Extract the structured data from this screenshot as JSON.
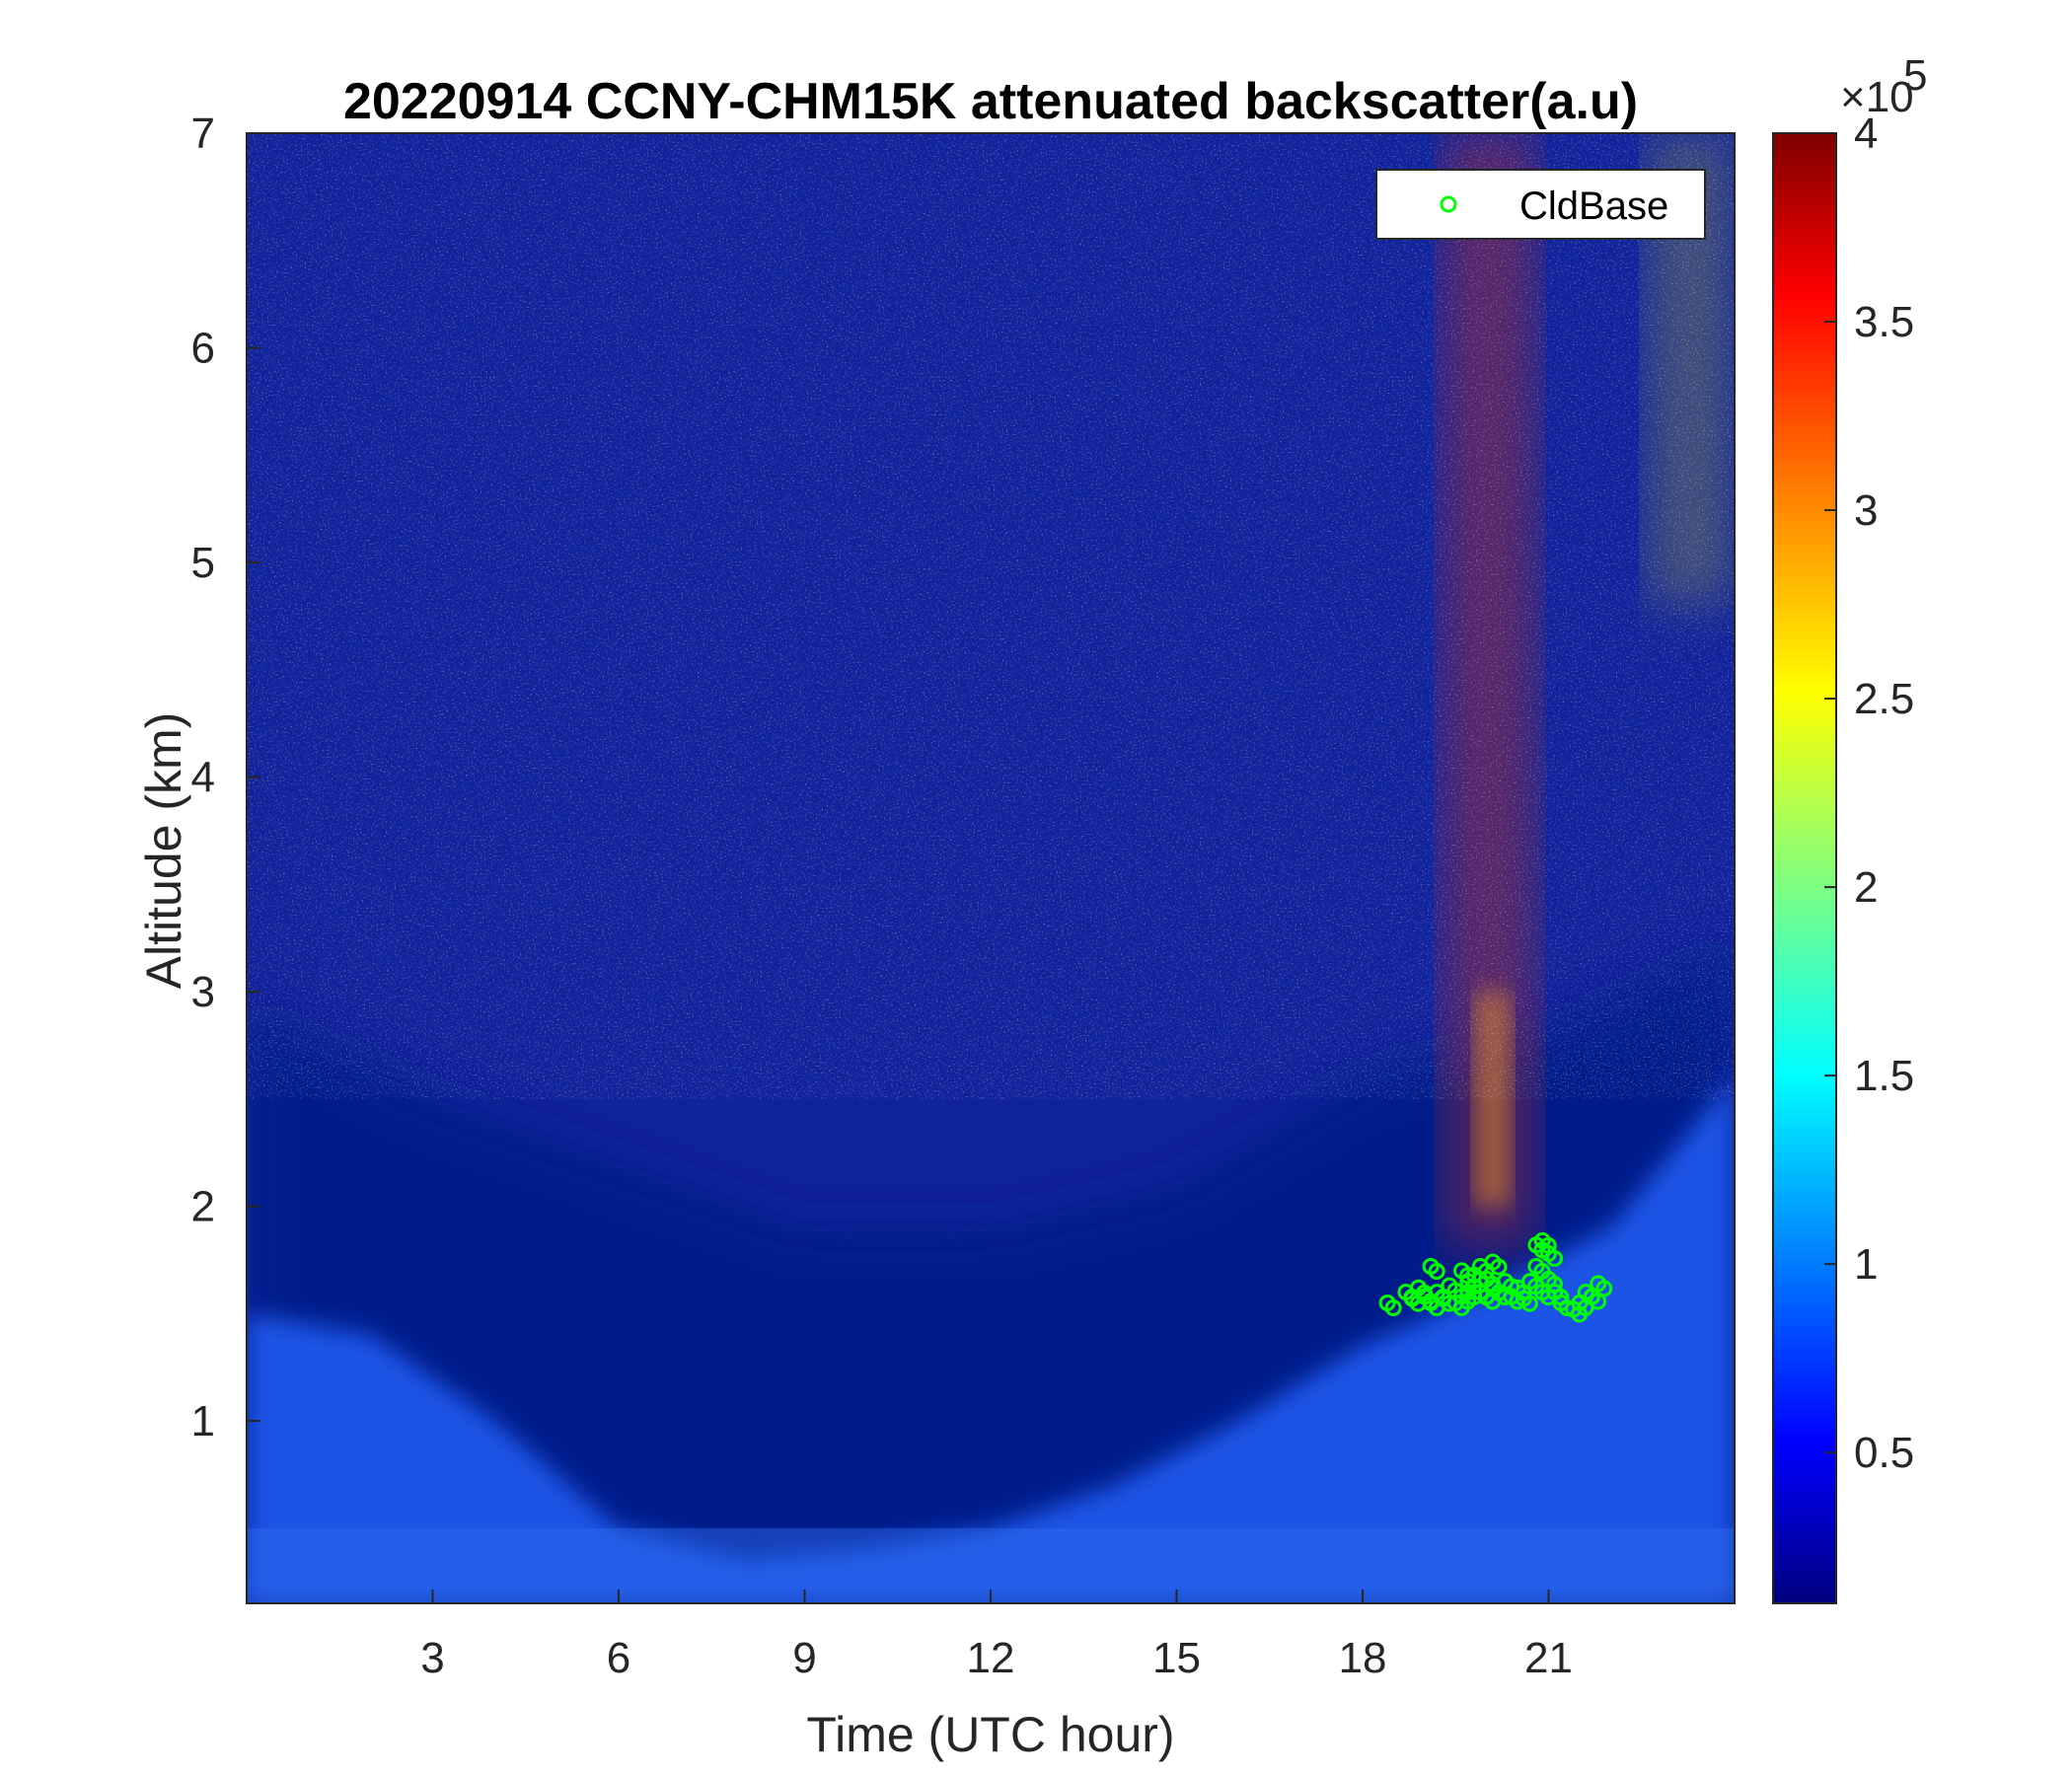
{
  "chart_data": {
    "type": "heatmap",
    "title": "20220914 CCNY-CHM15K attenuated backscatter(a.u)",
    "xlabel": "Time (UTC hour)",
    "ylabel": "Altitude (km)",
    "xlim": [
      0,
      24
    ],
    "ylim": [
      0.15,
      7
    ],
    "x_ticks": [
      3,
      6,
      9,
      12,
      15,
      18,
      21
    ],
    "y_ticks": [
      1,
      2,
      3,
      4,
      5,
      6,
      7
    ],
    "colormap": "jet",
    "colorbar": {
      "min": 10000,
      "max": 400000,
      "ticks": [
        0.5,
        1,
        1.5,
        2,
        2.5,
        3,
        3.5,
        4
      ],
      "exponent_label": "×10",
      "exponent": "5"
    },
    "regions": [
      {
        "description": "boundary layer (light blue)",
        "top_km_by_hour": [
          [
            0,
            1.5
          ],
          [
            2,
            1.4
          ],
          [
            4,
            1.0
          ],
          [
            6,
            0.5
          ],
          [
            8,
            0.35
          ],
          [
            10,
            0.4
          ],
          [
            12,
            0.5
          ],
          [
            14,
            0.7
          ],
          [
            16,
            1.0
          ],
          [
            18,
            1.35
          ],
          [
            20,
            1.6
          ],
          [
            22,
            1.9
          ],
          [
            24,
            2.6
          ]
        ]
      },
      {
        "description": "residual layer (dark blue) top",
        "top_km_by_hour": [
          [
            0,
            2.9
          ],
          [
            3,
            2.5
          ],
          [
            6,
            2.2
          ],
          [
            9,
            1.9
          ],
          [
            12,
            1.9
          ],
          [
            15,
            2.1
          ],
          [
            18,
            2.6
          ],
          [
            21,
            2.8
          ],
          [
            24,
            3.2
          ]
        ]
      },
      {
        "description": "high backscatter plume (red)",
        "x_range": [
          19.3,
          20.8
        ],
        "y_range": [
          1.8,
          7
        ]
      }
    ],
    "series": [
      {
        "name": "CldBase",
        "type": "scatter",
        "color": "#00ff00",
        "marker": "circle-open",
        "x": [
          18.4,
          18.7,
          18.8,
          18.9,
          19.0,
          19.1,
          19.1,
          19.2,
          19.3,
          19.4,
          19.5,
          19.6,
          19.6,
          19.7,
          19.7,
          19.8,
          19.9,
          19.9,
          20.0,
          20.0,
          20.1,
          20.1,
          20.2,
          20.3,
          20.4,
          20.5,
          20.6,
          20.7,
          20.8,
          20.8,
          20.9,
          20.9,
          21.0,
          21.0,
          21.1,
          21.2,
          21.4,
          21.5,
          21.6,
          21.7,
          21.8
        ],
        "y": [
          1.55,
          1.6,
          1.57,
          1.62,
          1.58,
          1.55,
          1.72,
          1.6,
          1.57,
          1.63,
          1.55,
          1.58,
          1.7,
          1.65,
          1.6,
          1.68,
          1.6,
          1.72,
          1.58,
          1.66,
          1.62,
          1.74,
          1.6,
          1.65,
          1.58,
          1.62,
          1.57,
          1.65,
          1.72,
          1.82,
          1.6,
          1.84,
          1.66,
          1.78,
          1.6,
          1.55,
          1.52,
          1.55,
          1.6,
          1.58,
          1.64
        ]
      }
    ],
    "legend": {
      "position": "top-right",
      "entries": [
        "CldBase"
      ]
    },
    "grid": false
  }
}
